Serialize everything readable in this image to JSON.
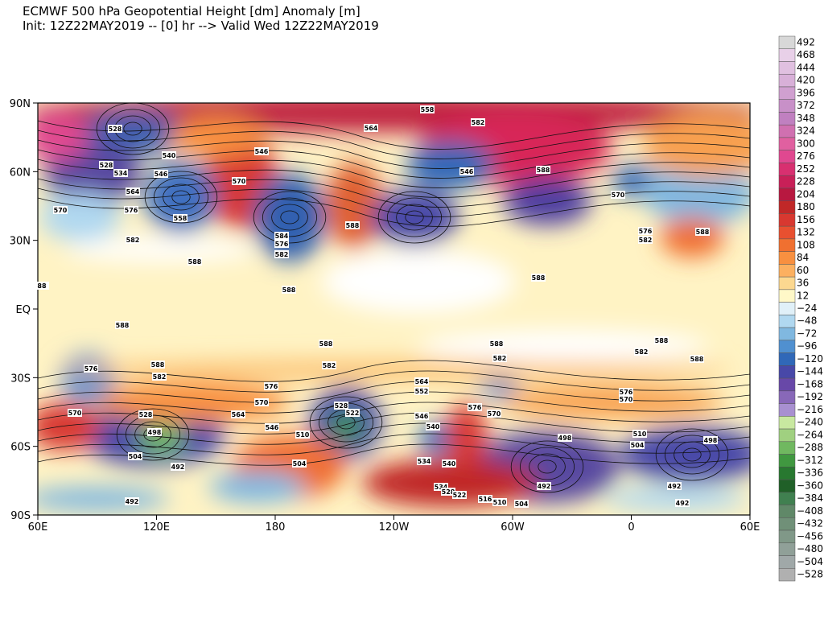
{
  "header": {
    "title": "ECMWF 500 hPa Geopotential Height [dm] Anomaly [m]",
    "subtitle": "Init: 12Z22MAY2019 -- [0] hr --> Valid Wed 12Z22MAY2019"
  },
  "map": {
    "lon_labels": [
      "60E",
      "120E",
      "180",
      "120W",
      "60W",
      "0",
      "60E"
    ],
    "lat_labels": [
      "90N",
      "60N",
      "30N",
      "EQ",
      "30S",
      "60S",
      "90S"
    ],
    "contour_labels": [
      "558",
      "564",
      "582",
      "528",
      "546",
      "540",
      "528",
      "534",
      "546",
      "570",
      "546",
      "588",
      "570",
      "564",
      "570",
      "576",
      "558",
      "584",
      "576",
      "582",
      "588",
      "582",
      "576",
      "582",
      "588",
      "588",
      "588",
      "588",
      "588",
      "588",
      "582",
      "588",
      "582",
      "576",
      "588",
      "582",
      "582",
      "588",
      "588",
      "576",
      "564",
      "552",
      "570",
      "528",
      "498",
      "570",
      "564",
      "528",
      "522",
      "546",
      "540",
      "576",
      "570",
      "576",
      "570",
      "510",
      "510",
      "504",
      "498",
      "498",
      "504",
      "492",
      "504",
      "534",
      "540",
      "492",
      "492",
      "534",
      "528",
      "522",
      "516",
      "510",
      "504",
      "492",
      "492",
      "546",
      "88"
    ]
  },
  "colorbar": {
    "labels": [
      "492",
      "468",
      "444",
      "420",
      "396",
      "372",
      "348",
      "324",
      "300",
      "276",
      "252",
      "228",
      "204",
      "180",
      "156",
      "132",
      "108",
      "84",
      "60",
      "36",
      "12",
      "−24",
      "−48",
      "−72",
      "−96",
      "−120",
      "−144",
      "−168",
      "−192",
      "−216",
      "−240",
      "−264",
      "−288",
      "−312",
      "−336",
      "−360",
      "−384",
      "−408",
      "−432",
      "−456",
      "−480",
      "−504",
      "−528"
    ],
    "colors": [
      "#d8d8d8",
      "#e8d0e8",
      "#e0c0e0",
      "#d8b0d8",
      "#d0a0d0",
      "#c890c8",
      "#c080c0",
      "#d070b0",
      "#e060a0",
      "#e04890",
      "#d83070",
      "#c82058",
      "#b81840",
      "#c02828",
      "#d83830",
      "#e85030",
      "#f07030",
      "#f89040",
      "#fcb060",
      "#fcd890",
      "#fff8c8",
      "#e0f0f8",
      "#b0d8f0",
      "#80b8e0",
      "#5090d0",
      "#3068b8",
      "#4848a8",
      "#6848a8",
      "#8868b8",
      "#a890d0",
      "#c8e8a0",
      "#a0d080",
      "#70b860",
      "#409840",
      "#287830",
      "#206028",
      "#408050",
      "#608868",
      "#709078",
      "#809888",
      "#90a098",
      "#a0a8a8",
      "#b0b0b0"
    ]
  }
}
